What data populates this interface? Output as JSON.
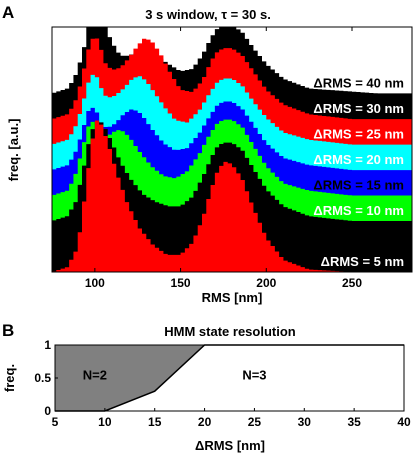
{
  "chart_data": [
    {
      "panel": "A",
      "type": "area",
      "title": "3 s window, τ = 30 s.",
      "xlabel": "RMS [nm]",
      "ylabel": "freq. [a.u.]",
      "xlim": [
        75,
        285
      ],
      "ylim": [
        0,
        1
      ],
      "xticks": [
        100,
        150,
        200,
        250
      ],
      "grid": false,
      "legend": "inline-right",
      "series": [
        {
          "name": "ΔRMS = 40 nm",
          "color": "#000000",
          "label_color": "#000000",
          "offset": 0.729,
          "x": [
            75,
            84,
            88,
            91,
            95,
            98,
            100,
            102,
            104,
            108,
            113,
            117,
            122,
            127,
            132,
            137,
            143,
            150,
            157,
            163,
            168,
            172,
            176,
            180,
            186,
            192,
            200,
            210,
            225,
            245,
            265,
            285
          ],
          "y": [
            0,
            0.02,
            0.06,
            0.12,
            0.22,
            0.35,
            0.42,
            0.4,
            0.33,
            0.24,
            0.17,
            0.15,
            0.16,
            0.17,
            0.17,
            0.15,
            0.12,
            0.09,
            0.1,
            0.16,
            0.23,
            0.27,
            0.28,
            0.28,
            0.25,
            0.19,
            0.12,
            0.06,
            0.02,
            0.01,
            0,
            0
          ]
        },
        {
          "name": "ΔRMS = 30 nm",
          "color": "#ff0000",
          "label_color": "#ffffff",
          "offset": 0.624,
          "x": [
            75,
            84,
            88,
            92,
            96,
            100,
            103,
            106,
            110,
            115,
            120,
            125,
            129,
            133,
            138,
            144,
            150,
            157,
            163,
            168,
            172,
            176,
            180,
            186,
            192,
            200,
            210,
            225,
            250,
            285
          ],
          "y": [
            0,
            0.02,
            0.06,
            0.15,
            0.28,
            0.35,
            0.3,
            0.23,
            0.2,
            0.21,
            0.25,
            0.3,
            0.33,
            0.32,
            0.27,
            0.19,
            0.12,
            0.11,
            0.16,
            0.24,
            0.28,
            0.29,
            0.29,
            0.26,
            0.2,
            0.12,
            0.06,
            0.02,
            0,
            0
          ]
        },
        {
          "name": "ΔRMS = 25 nm",
          "color": "#00ffff",
          "label_color": "#ffffff",
          "offset": 0.52,
          "x": [
            75,
            84,
            88,
            92,
            96,
            100,
            103,
            107,
            112,
            117,
            122,
            126,
            130,
            135,
            141,
            147,
            154,
            161,
            167,
            172,
            176,
            180,
            186,
            192,
            200,
            210,
            225,
            250,
            285
          ],
          "y": [
            0,
            0.02,
            0.06,
            0.14,
            0.25,
            0.3,
            0.24,
            0.19,
            0.2,
            0.23,
            0.27,
            0.28,
            0.26,
            0.21,
            0.15,
            0.1,
            0.09,
            0.14,
            0.21,
            0.26,
            0.27,
            0.27,
            0.24,
            0.18,
            0.11,
            0.05,
            0.02,
            0,
            0
          ]
        },
        {
          "name": "ΔRMS = 20 nm",
          "color": "#0000ff",
          "label_color": "#ffffff",
          "offset": 0.416,
          "x": [
            75,
            84,
            88,
            92,
            96,
            100,
            103,
            107,
            112,
            117,
            122,
            127,
            133,
            140,
            147,
            154,
            161,
            167,
            172,
            176,
            180,
            186,
            192,
            200,
            210,
            225,
            250,
            285
          ],
          "y": [
            0,
            0.02,
            0.06,
            0.14,
            0.24,
            0.26,
            0.2,
            0.17,
            0.19,
            0.23,
            0.25,
            0.23,
            0.17,
            0.11,
            0.08,
            0.09,
            0.15,
            0.22,
            0.27,
            0.28,
            0.28,
            0.25,
            0.19,
            0.11,
            0.05,
            0.02,
            0,
            0
          ]
        },
        {
          "name": "ΔRMS = 15 nm",
          "color": "#00ff00",
          "label_color": "#000000",
          "offset": 0.312,
          "x": [
            75,
            84,
            88,
            92,
            96,
            100,
            103,
            107,
            111,
            115,
            120,
            126,
            133,
            140,
            147,
            154,
            161,
            167,
            172,
            176,
            180,
            186,
            192,
            200,
            210,
            225,
            250,
            285
          ],
          "y": [
            0,
            0.02,
            0.07,
            0.17,
            0.28,
            0.31,
            0.26,
            0.24,
            0.26,
            0.27,
            0.24,
            0.18,
            0.12,
            0.08,
            0.07,
            0.1,
            0.17,
            0.25,
            0.3,
            0.31,
            0.31,
            0.28,
            0.21,
            0.12,
            0.05,
            0.02,
            0,
            0
          ]
        },
        {
          "name": "ΔRMS = 10 nm",
          "color": "#000000",
          "label_color": "#ffffff",
          "offset": 0.208,
          "x": [
            75,
            84,
            89,
            93,
            97,
            100,
            103,
            106,
            110,
            115,
            121,
            128,
            135,
            143,
            150,
            157,
            163,
            168,
            172,
            176,
            180,
            186,
            192,
            200,
            210,
            225,
            250,
            285
          ],
          "y": [
            0,
            0.02,
            0.08,
            0.2,
            0.34,
            0.4,
            0.41,
            0.38,
            0.32,
            0.24,
            0.17,
            0.11,
            0.08,
            0.06,
            0.06,
            0.1,
            0.18,
            0.26,
            0.31,
            0.32,
            0.32,
            0.29,
            0.22,
            0.13,
            0.06,
            0.02,
            0,
            0
          ]
        },
        {
          "name": "ΔRMS = 5 nm",
          "color": "#ff0000",
          "label_color": "#ffffff",
          "offset": 0.0,
          "x": [
            75,
            84,
            90,
            94,
            98,
            101,
            104,
            108,
            113,
            119,
            126,
            134,
            142,
            150,
            157,
            163,
            168,
            172,
            176,
            180,
            186,
            192,
            200,
            210,
            225,
            250,
            285
          ],
          "y": [
            0,
            0.02,
            0.1,
            0.3,
            0.52,
            0.62,
            0.6,
            0.52,
            0.4,
            0.28,
            0.18,
            0.11,
            0.07,
            0.07,
            0.12,
            0.22,
            0.34,
            0.42,
            0.45,
            0.44,
            0.38,
            0.27,
            0.14,
            0.05,
            0.01,
            0,
            0
          ]
        }
      ]
    },
    {
      "panel": "B",
      "type": "area",
      "title": "HMM state resolution",
      "xlabel": "ΔRMS [nm]",
      "ylabel": "freq.",
      "xlim": [
        5,
        40
      ],
      "ylim": [
        0,
        1
      ],
      "xticks": [
        5,
        10,
        15,
        20,
        25,
        30,
        35,
        40
      ],
      "yticks": [
        0,
        0.5,
        1
      ],
      "grid": false,
      "boundary": {
        "x": [
          5,
          10,
          15,
          20,
          40
        ],
        "y": [
          0,
          0,
          0.3,
          1,
          1
        ]
      },
      "fill_color": "#808080",
      "regions": [
        {
          "label": "N=2",
          "x": 9,
          "y": 0.55
        },
        {
          "label": "N=3",
          "x": 25,
          "y": 0.55
        }
      ]
    }
  ],
  "panel_labels": [
    "A",
    "B"
  ],
  "tick_labels_b_y": [
    "0",
    "0.5",
    "1"
  ]
}
